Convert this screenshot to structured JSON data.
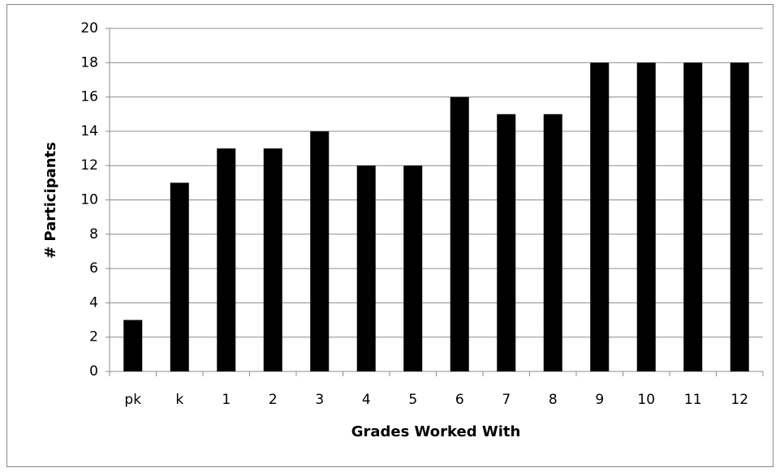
{
  "chart_data": {
    "type": "bar",
    "categories": [
      "pk",
      "k",
      "1",
      "2",
      "3",
      "4",
      "5",
      "6",
      "7",
      "8",
      "9",
      "10",
      "11",
      "12"
    ],
    "values": [
      3,
      11,
      13,
      13,
      14,
      12,
      12,
      16,
      15,
      15,
      18,
      18,
      18,
      18
    ],
    "color": "#000000",
    "xlabel": "Grades Worked With",
    "ylabel": "# Participants",
    "ylim": [
      0,
      20
    ],
    "yticks": [
      0,
      2,
      4,
      6,
      8,
      10,
      12,
      14,
      16,
      18,
      20
    ],
    "grid": true
  }
}
